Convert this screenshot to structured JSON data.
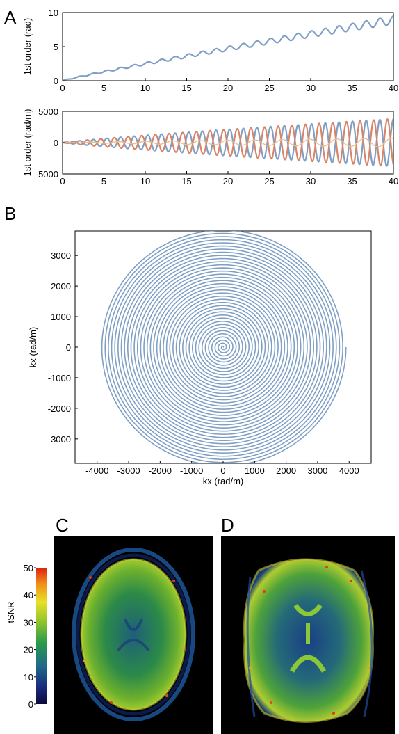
{
  "panel_labels": {
    "a": "A",
    "b": "B",
    "c": "C",
    "d": "D"
  },
  "colors": {
    "blue": "#7f9fc4",
    "orange": "#d98368",
    "black": "#000000"
  },
  "chart_data": [
    {
      "id": "A1",
      "type": "line",
      "xlabel": "",
      "ylabel": "1st order (rad)",
      "xlim": [
        0,
        40
      ],
      "ylim": [
        0,
        10
      ],
      "xticks": [
        "0",
        "5",
        "10",
        "15",
        "20",
        "25",
        "30",
        "35",
        "40"
      ],
      "yticks": [
        "0",
        "5",
        "10"
      ],
      "series": [
        {
          "color": "#7f9fc4",
          "model": "increasing oscillation",
          "trend_end": 8.9,
          "oscillation_period": 1.65,
          "oscillation_amplitude_start": 0.05,
          "oscillation_amplitude_end": 0.6
        }
      ]
    },
    {
      "id": "A2",
      "type": "line",
      "xlabel": "",
      "ylabel": "1st order (rad/m)",
      "xlim": [
        0,
        40
      ],
      "ylim": [
        -5000,
        5000
      ],
      "xticks": [
        "0",
        "5",
        "10",
        "15",
        "20",
        "25",
        "30",
        "35",
        "40"
      ],
      "yticks": [
        "-5000",
        "0",
        "5000"
      ],
      "series": [
        {
          "color": "#7f9fc4",
          "model": "growing oscillation",
          "oscillation_period": 1.65,
          "amplitude_end": 3800
        },
        {
          "color": "#d98368",
          "model": "growing oscillation (phase-shifted)",
          "oscillation_period": 1.65,
          "amplitude_end": 3800
        },
        {
          "color": "#e8c08a",
          "model": "small near-zero oscillation",
          "oscillation_period": 3.3,
          "amplitude_end": 700
        }
      ]
    },
    {
      "id": "B",
      "type": "line",
      "xlabel": "kx (rad/m)",
      "ylabel": "kx (rad/m)",
      "xlim": [
        -4700,
        4700
      ],
      "ylim": [
        -3800,
        3800
      ],
      "xticks": [
        "-4000",
        "-3000",
        "-2000",
        "-1000",
        "0",
        "1000",
        "2000",
        "3000",
        "4000"
      ],
      "yticks": [
        "3000",
        "2000",
        "1000",
        "0",
        "-1000",
        "-2000",
        "-3000"
      ],
      "series": [
        {
          "color": "#7f9fc4",
          "model": "Archimedean spiral",
          "turns": 38,
          "max_radius": 3900
        }
      ]
    },
    {
      "id": "colorbar",
      "type": "heatmap",
      "label": "tSNR",
      "range": [
        0,
        50
      ],
      "ticks": [
        "50",
        "40",
        "30",
        "20",
        "10",
        "0"
      ]
    }
  ]
}
